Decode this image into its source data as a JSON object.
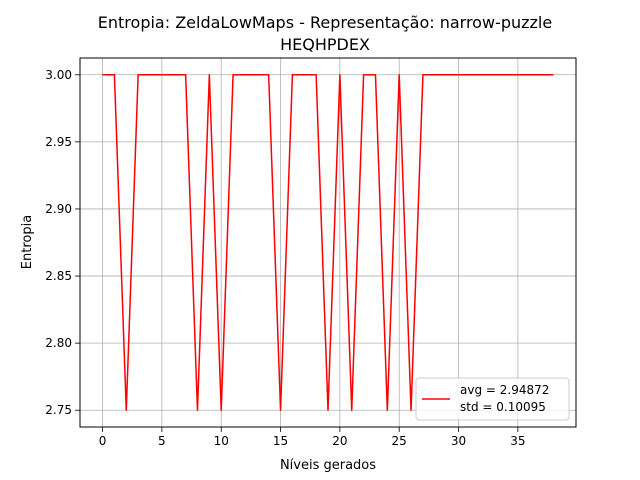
{
  "chart_data": {
    "type": "line",
    "title": [
      "Entropia: ZeldaLowMaps - Representação: narrow-puzzle",
      "HEQHPDEX"
    ],
    "xlabel": "Níveis gerados",
    "ylabel": "Entropia",
    "xlim": [
      -1.9,
      39.9
    ],
    "ylim": [
      2.7375,
      3.0125
    ],
    "xticks": [
      0,
      5,
      10,
      15,
      20,
      25,
      30,
      35
    ],
    "yticks": [
      2.75,
      2.8,
      2.85,
      2.9,
      2.95,
      3.0
    ],
    "xtick_labels": [
      "0",
      "5",
      "10",
      "15",
      "20",
      "25",
      "30",
      "35"
    ],
    "ytick_labels": [
      "2.75",
      "2.80",
      "2.85",
      "2.90",
      "2.95",
      "3.00"
    ],
    "grid": true,
    "legend_position": "lower-right",
    "legend_text": [
      "avg = 2.94872",
      "std = 0.10095"
    ],
    "series": [
      {
        "color": "#ff0000",
        "x": [
          0,
          1,
          2,
          3,
          4,
          5,
          6,
          7,
          8,
          9,
          10,
          11,
          12,
          13,
          14,
          15,
          16,
          17,
          18,
          19,
          20,
          21,
          22,
          23,
          24,
          25,
          26,
          27,
          28,
          29,
          30,
          31,
          32,
          33,
          34,
          35,
          36,
          37,
          38
        ],
        "values": [
          3.0,
          3.0,
          2.75,
          3.0,
          3.0,
          3.0,
          3.0,
          3.0,
          2.75,
          3.0,
          2.75,
          3.0,
          3.0,
          3.0,
          3.0,
          2.75,
          3.0,
          3.0,
          3.0,
          2.75,
          3.0,
          2.75,
          3.0,
          3.0,
          2.75,
          3.0,
          2.75,
          3.0,
          3.0,
          3.0,
          3.0,
          3.0,
          3.0,
          3.0,
          3.0,
          3.0,
          3.0,
          3.0,
          3.0
        ]
      }
    ]
  }
}
